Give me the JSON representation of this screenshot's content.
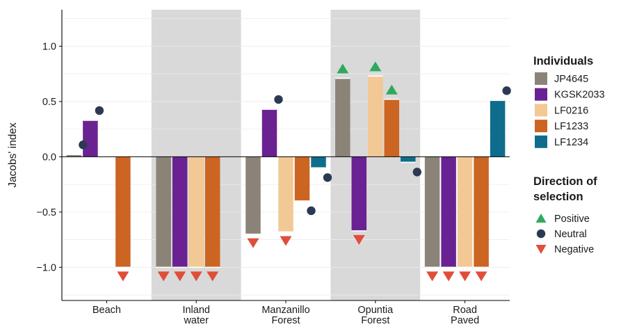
{
  "chart_data": {
    "type": "bar",
    "ylabel": "Jacobs' index",
    "ylim": [
      -1.3,
      1.33
    ],
    "yticks": [
      -1.0,
      -0.5,
      0.0,
      0.5,
      1.0
    ],
    "ytick_labels": [
      "−1.0",
      "−0.5",
      "0.0",
      "0.5",
      "1.0"
    ],
    "categories": [
      {
        "lines": [
          "Beach"
        ],
        "shaded": false
      },
      {
        "lines": [
          "Inland",
          "water"
        ],
        "shaded": true
      },
      {
        "lines": [
          "Manzanillo",
          "Forest"
        ],
        "shaded": false
      },
      {
        "lines": [
          "Opuntia",
          "Forest"
        ],
        "shaded": true
      },
      {
        "lines": [
          "Road",
          "Paved"
        ],
        "shaded": false
      }
    ],
    "series": [
      {
        "name": "JP4645",
        "color": "#8c8378",
        "values": [
          0.02,
          -1.0,
          -0.7,
          0.71,
          -1.0
        ],
        "selection": [
          "Neutral",
          "Negative",
          "Negative",
          "Positive",
          "Negative"
        ]
      },
      {
        "name": "KGSK2033",
        "color": "#6a2292",
        "values": [
          0.33,
          -1.0,
          0.43,
          -0.67,
          -1.0
        ],
        "selection": [
          "Neutral",
          "Negative",
          "Neutral",
          "Negative",
          "Negative"
        ]
      },
      {
        "name": "LF0216",
        "color": "#f2c894",
        "values": [
          null,
          -1.0,
          -0.68,
          0.73,
          -1.0
        ],
        "selection": [
          null,
          "Negative",
          "Negative",
          "Positive",
          "Negative"
        ]
      },
      {
        "name": "LF1233",
        "color": "#cc6422",
        "values": [
          -1.0,
          -1.0,
          -0.4,
          0.52,
          -1.0
        ],
        "selection": [
          "Negative",
          "Negative",
          "Neutral",
          "Positive",
          "Negative"
        ]
      },
      {
        "name": "LF1234",
        "color": "#0e6d8c",
        "values": [
          null,
          null,
          -0.1,
          -0.05,
          0.51
        ],
        "selection": [
          null,
          null,
          "Neutral",
          "Neutral",
          "Neutral"
        ]
      }
    ],
    "legend": {
      "individuals_title": "Individuals",
      "direction_title_line1": "Direction of",
      "direction_title_line2": "selection",
      "positive_label": "Positive",
      "neutral_label": "Neutral",
      "negative_label": "Negative",
      "positive_color": "#2eaa5c",
      "neutral_color": "#2b3a52",
      "negative_color": "#e04e39",
      "placement": "right"
    },
    "grid": true
  }
}
